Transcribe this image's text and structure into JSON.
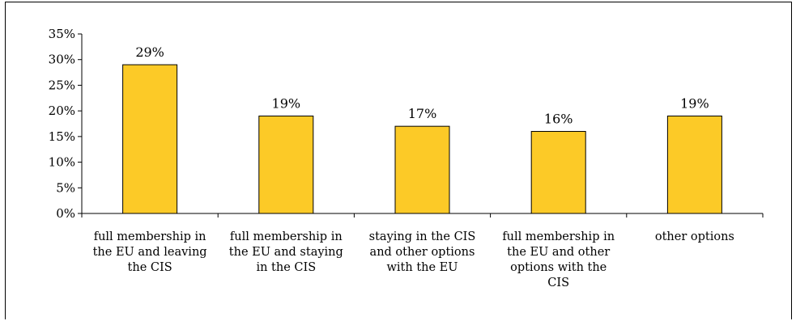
{
  "chart_data": {
    "type": "bar",
    "categories": [
      "full membership in the EU and leaving the CIS",
      "full membership in the EU and staying in the CIS",
      "staying in the CIS and other options with the EU",
      "full membership in the EU and other options with the CIS",
      "other options"
    ],
    "values": [
      29,
      19,
      17,
      16,
      19
    ],
    "value_labels": [
      "29%",
      "19%",
      "17%",
      "16%",
      "19%"
    ],
    "y_ticks": [
      "0%",
      "5%",
      "10%",
      "15%",
      "20%",
      "25%",
      "30%",
      "35%"
    ],
    "ylim": [
      0,
      35
    ],
    "grid": false,
    "legend": "none",
    "bar_color": "#FCCA27",
    "bar_outline": "#000000"
  }
}
